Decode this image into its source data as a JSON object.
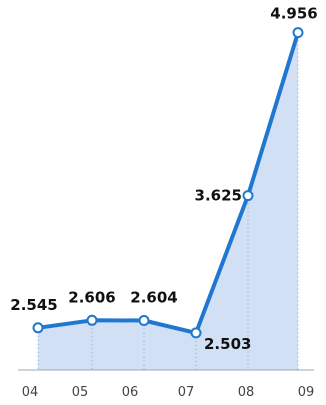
{
  "chart_data": {
    "type": "area",
    "categories": [
      "04",
      "05",
      "06",
      "07",
      "08",
      "09"
    ],
    "series": [
      {
        "values": [
          2.545,
          2.606,
          2.604,
          2.503,
          3.625,
          4.956
        ]
      }
    ],
    "data_labels": [
      "2.545",
      "2.606",
      "2.604",
      "2.503",
      "3.625",
      "4.956"
    ],
    "title": "",
    "xlabel": "",
    "ylabel": "",
    "ylim": [
      2.2,
      5.1
    ],
    "grid": false,
    "legend": "none",
    "colors": {
      "line": "#1f77d0",
      "fill": "#c5d8f2",
      "marker_fill": "#ffffff",
      "dropline": "#8aa0bf"
    }
  }
}
